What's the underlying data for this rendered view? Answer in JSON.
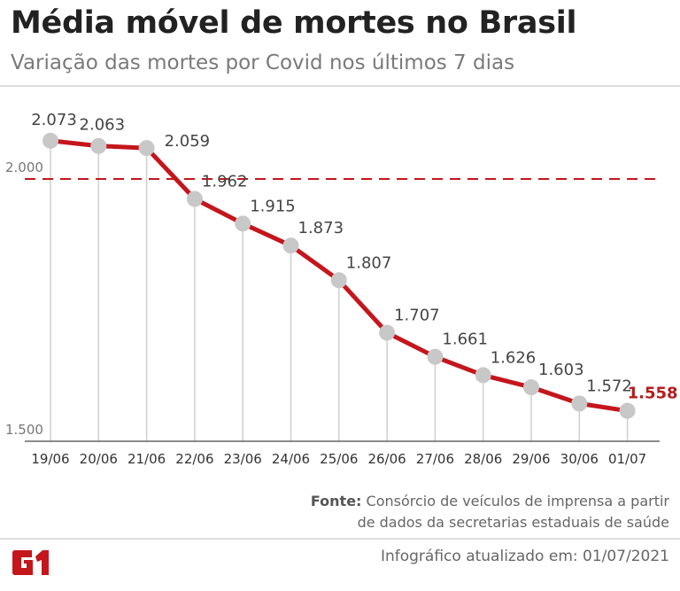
{
  "header": {
    "title": "Média móvel de mortes no Brasil",
    "subtitle": "Variação das mortes por Covid nos últimos 7 dias"
  },
  "chart_data": {
    "type": "line",
    "title": "Média móvel de mortes no Brasil",
    "subtitle": "Variação das mortes por Covid nos últimos 7 dias",
    "categories": [
      "19/06",
      "20/06",
      "21/06",
      "22/06",
      "23/06",
      "24/06",
      "25/06",
      "26/06",
      "27/06",
      "28/06",
      "29/06",
      "30/06",
      "01/07"
    ],
    "values": [
      2073,
      2063,
      2059,
      1962,
      1915,
      1873,
      1807,
      1707,
      1661,
      1626,
      1603,
      1572,
      1558
    ],
    "data_labels": [
      "2.073",
      "2.063",
      "2.059",
      "1.962",
      "1.915",
      "1.873",
      "1.807",
      "1.707",
      "1.661",
      "1.626",
      "1.603",
      "1.572",
      "1.558"
    ],
    "ylim": [
      1500,
      2100
    ],
    "yticks": [
      {
        "value": 1500,
        "label": "1.500"
      },
      {
        "value": 2000,
        "label": "2.000"
      }
    ],
    "reference_line": {
      "value": 2000,
      "style": "dashed",
      "color": "#c4161c"
    },
    "line_color": "#c4161c",
    "marker_color": "#c8c8c8",
    "highlight_label_color": "#b71c1c",
    "grid": "vertical drop lines",
    "xlabel": "",
    "ylabel": ""
  },
  "footer": {
    "source_label": "Fonte:",
    "source_line1": "Consórcio de veículos de imprensa a partir",
    "source_line2": "de dados da secretarias estaduais de saúde",
    "updated": "Infográfico atualizado em: 01/07/2021",
    "logo_text": "G1",
    "logo_color": "#c4161c"
  }
}
